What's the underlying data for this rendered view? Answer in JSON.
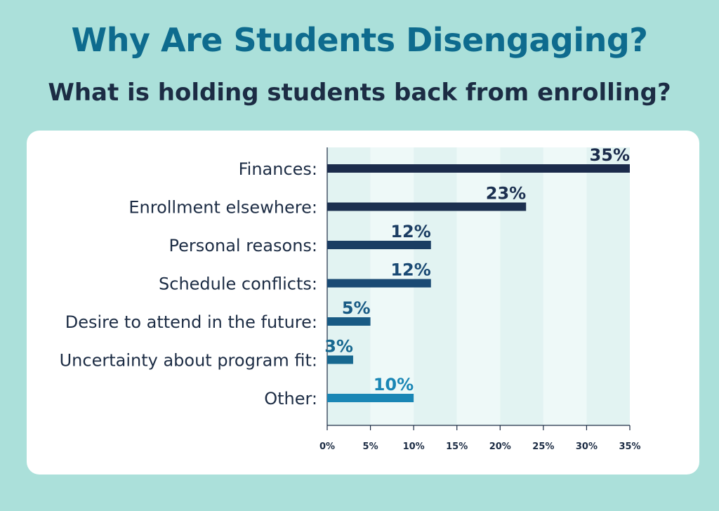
{
  "title": "Why Are Students Disengaging?",
  "subtitle": "What is holding students back from enrolling?",
  "colors": {
    "background": "#abe0da",
    "title": "#0e6b8e",
    "band_light": "#eef9f8",
    "band_dark": "#e2f3f2"
  },
  "chart_data": {
    "type": "bar",
    "orientation": "horizontal",
    "categories": [
      "Finances:",
      "Enrollment elsewhere:",
      "Personal reasons:",
      "Schedule conflicts:",
      "Desire to attend in the future:",
      "Uncertainty about program fit:",
      "Other:"
    ],
    "values": [
      35,
      23,
      12,
      12,
      5,
      3,
      10
    ],
    "value_labels": [
      "35%",
      "23%",
      "12%",
      "12%",
      "5%",
      "3%",
      "10%"
    ],
    "bar_colors": [
      "#1b2b4b",
      "#1c3050",
      "#1b3d63",
      "#1a4a74",
      "#185a84",
      "#176890",
      "#1a86b5"
    ],
    "label_colors": [
      "#1b2b4b",
      "#1c3050",
      "#1b3d63",
      "#1a4a74",
      "#185a84",
      "#176890",
      "#1a86b5"
    ],
    "xticks": [
      "0%",
      "5%",
      "10%",
      "15%",
      "20%",
      "25%",
      "30%",
      "35%"
    ],
    "xlim": [
      0,
      35
    ],
    "xlabel": "",
    "ylabel": "",
    "grid": "alternating vertical bands"
  }
}
